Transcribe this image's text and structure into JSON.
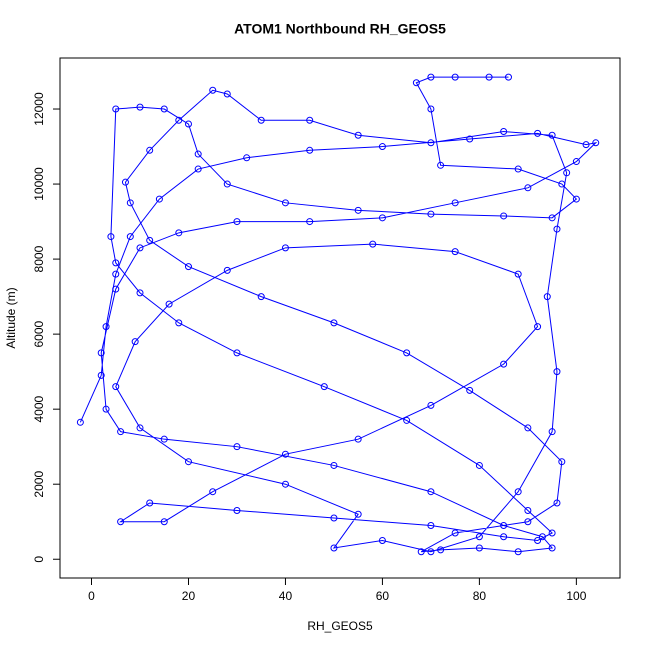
{
  "chart_data": {
    "type": "line",
    "title": "ATOM1 Northbound RH_GEOS5",
    "x_label": "RH_GEOS5",
    "y_label": "Altitude (m)",
    "xlim": [
      -6.5,
      109
    ],
    "ylim": [
      -500,
      13360
    ],
    "xticks": [
      0,
      20,
      40,
      60,
      80,
      100
    ],
    "yticks": [
      0,
      2000,
      4000,
      6000,
      8000,
      10000,
      12000
    ],
    "color": "#0000ff",
    "markers": true,
    "x": [
      -2.3,
      2,
      3,
      5,
      8,
      14,
      22,
      32,
      45,
      60,
      78,
      92,
      102,
      104,
      100,
      90,
      75,
      60,
      45,
      30,
      18,
      10,
      5,
      2,
      3,
      6,
      15,
      30,
      50,
      70,
      85,
      93,
      95,
      88,
      80,
      72,
      68,
      75,
      90,
      96,
      97,
      90,
      78,
      65,
      50,
      35,
      20,
      12,
      8,
      7,
      12,
      18,
      25,
      28,
      35,
      45,
      55,
      70,
      85,
      95,
      98,
      96,
      94,
      96,
      95,
      88,
      80,
      70,
      60,
      50,
      55,
      40,
      20,
      10,
      5,
      9,
      16,
      28,
      40,
      58,
      75,
      88,
      92,
      85,
      70,
      55,
      40,
      25,
      15,
      6,
      12,
      30,
      50,
      70,
      85,
      92,
      95,
      90,
      80,
      65,
      48,
      30,
      18,
      10,
      5,
      4,
      5,
      10,
      15,
      20,
      22,
      28,
      40,
      55,
      70,
      85,
      95,
      100,
      97,
      88,
      72,
      70,
      67,
      70,
      75,
      82,
      86
    ],
    "values": [
      3650,
      4900,
      6200,
      7600,
      8600,
      9600,
      10400,
      10700,
      10900,
      11000,
      11200,
      11350,
      11050,
      11100,
      10600,
      9900,
      9500,
      9100,
      9000,
      9000,
      8700,
      8300,
      7200,
      5500,
      4000,
      3400,
      3200,
      3000,
      2500,
      1800,
      900,
      600,
      300,
      200,
      300,
      250,
      200,
      700,
      1000,
      1500,
      2600,
      3500,
      4500,
      5500,
      6300,
      7000,
      7800,
      8500,
      9500,
      10050,
      10900,
      11700,
      12500,
      12400,
      11700,
      11700,
      11300,
      11100,
      11400,
      11300,
      10300,
      8800,
      7000,
      5000,
      3400,
      1800,
      600,
      200,
      500,
      300,
      1200,
      2000,
      2600,
      3500,
      4600,
      5800,
      6800,
      7700,
      8300,
      8400,
      8200,
      7600,
      6200,
      5200,
      4100,
      3200,
      2800,
      1800,
      1000,
      1000,
      1500,
      1300,
      1100,
      900,
      600,
      500,
      700,
      1300,
      2500,
      3700,
      4600,
      5500,
      6300,
      7100,
      7900,
      8600,
      12000,
      12050,
      12000,
      11600,
      10800,
      10000,
      9500,
      9300,
      9200,
      9150,
      9100,
      9600,
      10000,
      10400,
      10500,
      12000,
      12700,
      12850,
      12850,
      12850,
      12850
    ]
  }
}
